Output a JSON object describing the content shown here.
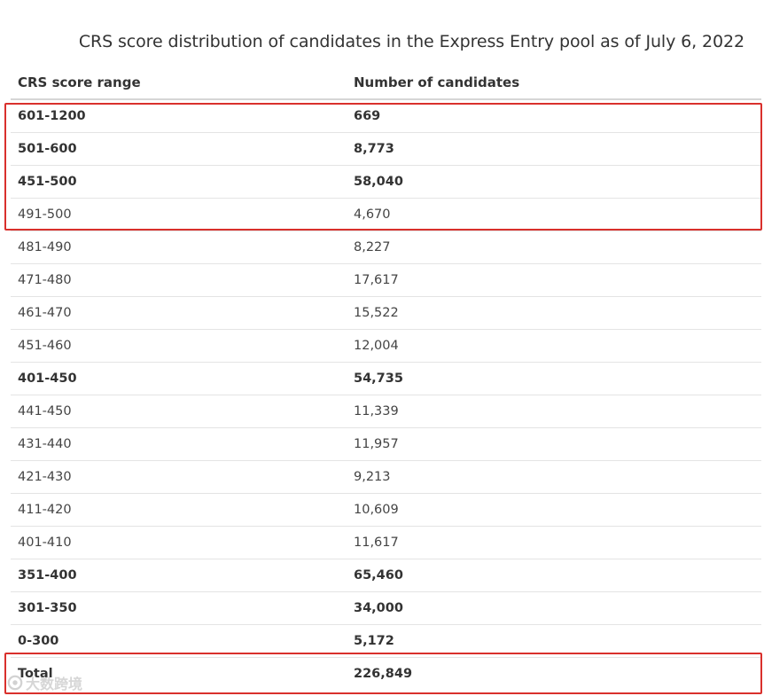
{
  "caption": "CRS score distribution of candidates in the Express Entry pool as of July 6, 2022",
  "table": {
    "columns": [
      "CRS score range",
      "Number of candidates"
    ],
    "rows": [
      {
        "range": "601-1200",
        "count": "669",
        "bold": true
      },
      {
        "range": "501-600",
        "count": "8,773",
        "bold": true
      },
      {
        "range": "451-500",
        "count": "58,040",
        "bold": true
      },
      {
        "range": "491-500",
        "count": "4,670",
        "bold": false
      },
      {
        "range": "481-490",
        "count": "8,227",
        "bold": false
      },
      {
        "range": "471-480",
        "count": "17,617",
        "bold": false
      },
      {
        "range": "461-470",
        "count": "15,522",
        "bold": false
      },
      {
        "range": "451-460",
        "count": "12,004",
        "bold": false
      },
      {
        "range": "401-450",
        "count": "54,735",
        "bold": true
      },
      {
        "range": "441-450",
        "count": "11,339",
        "bold": false
      },
      {
        "range": "431-440",
        "count": "11,957",
        "bold": false
      },
      {
        "range": "421-430",
        "count": "9,213",
        "bold": false
      },
      {
        "range": "411-420",
        "count": "10,609",
        "bold": false
      },
      {
        "range": "401-410",
        "count": "11,617",
        "bold": false
      },
      {
        "range": "351-400",
        "count": "65,460",
        "bold": true
      },
      {
        "range": "301-350",
        "count": "34,000",
        "bold": true
      },
      {
        "range": "0-300",
        "count": "5,172",
        "bold": true
      }
    ],
    "total": {
      "range": "Total",
      "count": "226,849"
    }
  },
  "highlight_color": "#d9302c",
  "watermark": {
    "text": "大数跨境",
    "icon": "brand-logo-icon"
  }
}
